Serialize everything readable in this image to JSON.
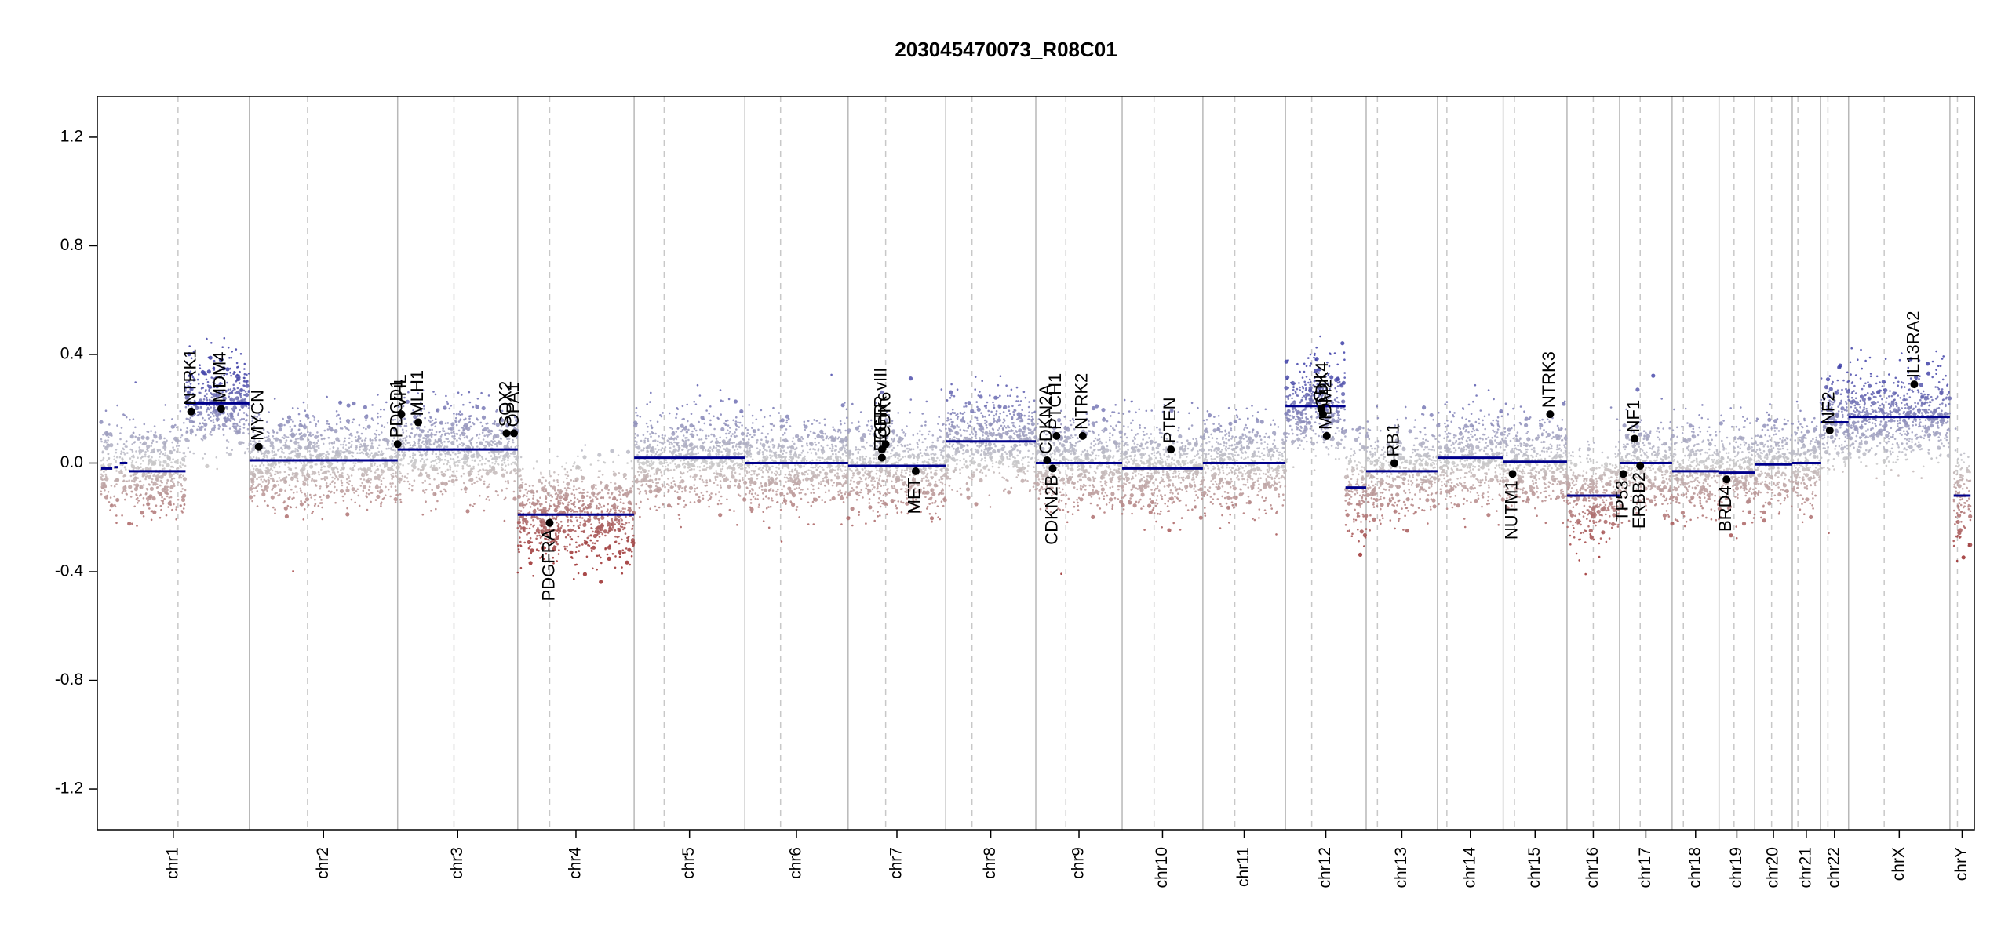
{
  "chart_data": {
    "type": "scatter",
    "title": "203045470073_R08C01",
    "xlabel": "",
    "ylabel": "",
    "ylim": [
      -1.35,
      1.35
    ],
    "yticks": [
      1.2,
      0.8,
      0.4,
      0.0,
      -0.4,
      -0.8,
      -1.2
    ],
    "ytick_labels": [
      "1.2",
      "0.8",
      "0.4",
      "0.0",
      "-0.4",
      "-0.8",
      "-1.2"
    ],
    "colors": {
      "gain": "#3e3fa8",
      "loss": "#9a2a2a",
      "neutral": "#c8c8c8",
      "segment": "#00008b",
      "gene_point": "#000000",
      "chrom_border": "#b8b8b8",
      "centromere": "#c8c8c8"
    },
    "chromosomes": [
      {
        "name": "chr1",
        "start": 0.0,
        "end": 8.1,
        "centromere": 4.3
      },
      {
        "name": "chr2",
        "start": 8.1,
        "end": 16.0,
        "centromere": 11.2
      },
      {
        "name": "chr3",
        "start": 16.0,
        "end": 22.4,
        "centromere": 19.0
      },
      {
        "name": "chr4",
        "start": 22.4,
        "end": 28.6,
        "centromere": 24.1
      },
      {
        "name": "chr5",
        "start": 28.6,
        "end": 34.5,
        "centromere": 30.2
      },
      {
        "name": "chr6",
        "start": 34.5,
        "end": 40.0,
        "centromere": 36.4
      },
      {
        "name": "chr7",
        "start": 40.0,
        "end": 45.2,
        "centromere": 42.0
      },
      {
        "name": "chr8",
        "start": 45.2,
        "end": 50.0,
        "centromere": 46.6
      },
      {
        "name": "chr9",
        "start": 50.0,
        "end": 54.6,
        "centromere": 51.6
      },
      {
        "name": "chr10",
        "start": 54.6,
        "end": 58.9,
        "centromere": 56.3
      },
      {
        "name": "chr11",
        "start": 58.9,
        "end": 63.3,
        "centromere": 60.6
      },
      {
        "name": "chr12",
        "start": 63.3,
        "end": 67.6,
        "centromere": 64.7
      },
      {
        "name": "chr13",
        "start": 67.6,
        "end": 71.4,
        "centromere": 68.2
      },
      {
        "name": "chr14",
        "start": 71.4,
        "end": 74.9,
        "centromere": 71.9
      },
      {
        "name": "chr15",
        "start": 74.9,
        "end": 78.3,
        "centromere": 75.5
      },
      {
        "name": "chr16",
        "start": 78.3,
        "end": 81.1,
        "centromere": 79.7
      },
      {
        "name": "chr17",
        "start": 81.1,
        "end": 83.9,
        "centromere": 82.2
      },
      {
        "name": "chr18",
        "start": 83.9,
        "end": 86.4,
        "centromere": 84.5
      },
      {
        "name": "chr19",
        "start": 86.4,
        "end": 88.3,
        "centromere": 87.2
      },
      {
        "name": "chr20",
        "start": 88.3,
        "end": 90.3,
        "centromere": 89.2
      },
      {
        "name": "chr21",
        "start": 90.3,
        "end": 91.8,
        "centromere": 90.6
      },
      {
        "name": "chr22",
        "start": 91.8,
        "end": 93.3,
        "centromere": 92.2
      },
      {
        "name": "chrX",
        "start": 93.3,
        "end": 98.7,
        "centromere": 95.2
      },
      {
        "name": "chrY",
        "start": 98.7,
        "end": 100.0,
        "centromere": 99.1
      }
    ],
    "segments": [
      {
        "chrom": "chr1",
        "start": 0.2,
        "end": 0.8,
        "value": -0.02
      },
      {
        "chrom": "chr1",
        "start": 0.9,
        "end": 1.1,
        "value": -0.015
      },
      {
        "chrom": "chr1",
        "start": 1.2,
        "end": 1.6,
        "value": 0.0
      },
      {
        "chrom": "chr1",
        "start": 1.7,
        "end": 4.7,
        "value": -0.03
      },
      {
        "chrom": "chr1",
        "start": 4.7,
        "end": 8.1,
        "value": 0.22
      },
      {
        "chrom": "chr2",
        "start": 8.1,
        "end": 16.0,
        "value": 0.01
      },
      {
        "chrom": "chr3",
        "start": 16.0,
        "end": 22.4,
        "value": 0.05
      },
      {
        "chrom": "chr4",
        "start": 22.4,
        "end": 28.6,
        "value": -0.19
      },
      {
        "chrom": "chr5",
        "start": 28.6,
        "end": 34.5,
        "value": 0.02
      },
      {
        "chrom": "chr6",
        "start": 34.5,
        "end": 40.0,
        "value": 0.0
      },
      {
        "chrom": "chr7",
        "start": 40.0,
        "end": 45.2,
        "value": -0.01
      },
      {
        "chrom": "chr8",
        "start": 45.2,
        "end": 50.0,
        "value": 0.08
      },
      {
        "chrom": "chr9",
        "start": 50.0,
        "end": 54.6,
        "value": 0.0
      },
      {
        "chrom": "chr10",
        "start": 54.6,
        "end": 58.9,
        "value": -0.02
      },
      {
        "chrom": "chr11",
        "start": 58.9,
        "end": 63.3,
        "value": 0.0
      },
      {
        "chrom": "chr12",
        "start": 63.3,
        "end": 66.5,
        "value": 0.21
      },
      {
        "chrom": "chr12",
        "start": 66.5,
        "end": 67.6,
        "value": -0.09
      },
      {
        "chrom": "chr13",
        "start": 67.6,
        "end": 71.4,
        "value": -0.03
      },
      {
        "chrom": "chr14",
        "start": 71.4,
        "end": 74.9,
        "value": 0.02
      },
      {
        "chrom": "chr15",
        "start": 74.9,
        "end": 78.3,
        "value": 0.005
      },
      {
        "chrom": "chr16",
        "start": 78.3,
        "end": 81.1,
        "value": -0.12
      },
      {
        "chrom": "chr17",
        "start": 81.1,
        "end": 83.9,
        "value": 0.0
      },
      {
        "chrom": "chr18",
        "start": 83.9,
        "end": 86.4,
        "value": -0.03
      },
      {
        "chrom": "chr19",
        "start": 86.4,
        "end": 88.3,
        "value": -0.035
      },
      {
        "chrom": "chr20",
        "start": 88.3,
        "end": 90.3,
        "value": -0.005
      },
      {
        "chrom": "chr21",
        "start": 90.3,
        "end": 91.8,
        "value": 0.0
      },
      {
        "chrom": "chr22",
        "start": 91.8,
        "end": 93.3,
        "value": 0.15
      },
      {
        "chrom": "chrX",
        "start": 93.3,
        "end": 98.7,
        "value": 0.17
      },
      {
        "chrom": "chrY",
        "start": 98.9,
        "end": 99.8,
        "value": -0.12
      }
    ],
    "genes": [
      {
        "name": "NTRK1",
        "x": 5.0,
        "value": 0.19
      },
      {
        "name": "MDM4",
        "x": 6.6,
        "value": 0.2
      },
      {
        "name": "MYCN",
        "x": 8.6,
        "value": 0.06
      },
      {
        "name": "PDGFRA",
        "x": 24.1,
        "value": -0.22
      },
      {
        "name": "PDCD1",
        "x": 16.0,
        "value": 0.07
      },
      {
        "name": "VHL",
        "x": 16.2,
        "value": 0.18
      },
      {
        "name": "MLH1",
        "x": 17.1,
        "value": 0.15
      },
      {
        "name": "SOX2",
        "x": 21.8,
        "value": 0.11
      },
      {
        "name": "OPA1",
        "x": 22.2,
        "value": 0.11
      },
      {
        "name": "EGFR",
        "x": 41.8,
        "value": 0.02
      },
      {
        "name": "EGFR vIII",
        "x": 41.8,
        "value": 0.05
      },
      {
        "name": "MET",
        "x": 43.6,
        "value": -0.03
      },
      {
        "name": "CDK6",
        "x": 42.0,
        "value": 0.07
      },
      {
        "name": "CDKN2A",
        "x": 50.6,
        "value": 0.01
      },
      {
        "name": "CDKN2B",
        "x": 50.9,
        "value": -0.02
      },
      {
        "name": "PTCH1",
        "x": 51.1,
        "value": 0.1
      },
      {
        "name": "NTRK2",
        "x": 52.5,
        "value": 0.1
      },
      {
        "name": "PTEN",
        "x": 57.2,
        "value": 0.05
      },
      {
        "name": "CDK4",
        "x": 65.3,
        "value": 0.18
      },
      {
        "name": "MDM2",
        "x": 65.5,
        "value": 0.1
      },
      {
        "name": "GLI",
        "x": 65.2,
        "value": 0.2
      },
      {
        "name": "RB1",
        "x": 69.1,
        "value": 0.0
      },
      {
        "name": "NUTM1",
        "x": 75.4,
        "value": -0.04
      },
      {
        "name": "NTRK3",
        "x": 77.4,
        "value": 0.18
      },
      {
        "name": "TP53",
        "x": 81.3,
        "value": -0.04
      },
      {
        "name": "NF1",
        "x": 81.9,
        "value": 0.09
      },
      {
        "name": "ERBB2",
        "x": 82.2,
        "value": -0.01
      },
      {
        "name": "BRD4",
        "x": 86.8,
        "value": -0.06
      },
      {
        "name": "NF2",
        "x": 92.3,
        "value": 0.12
      },
      {
        "name": "IL13RA2",
        "x": 96.8,
        "value": 0.29
      }
    ]
  }
}
